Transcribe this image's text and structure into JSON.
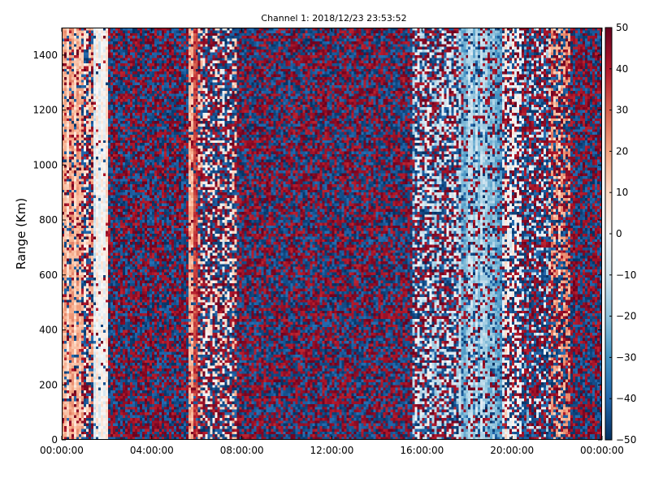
{
  "chart_data": {
    "type": "heatmap",
    "title": "Channel 1: 2018/12/23 23:53:52",
    "xlabel": "",
    "ylabel": "Range (Km)",
    "x_ticks": [
      "00:00:00",
      "04:00:00",
      "08:00:00",
      "12:00:00",
      "16:00:00",
      "20:00:00",
      "00:00:00"
    ],
    "x_range_hours": [
      0,
      24
    ],
    "y_ticks": [
      0,
      200,
      400,
      600,
      800,
      1000,
      1200,
      1400
    ],
    "ylim": [
      0,
      1500
    ],
    "colorbar": {
      "ticks": [
        -50,
        -40,
        -30,
        -20,
        -10,
        0,
        10,
        20,
        30,
        40,
        50
      ],
      "range": [
        -50,
        50
      ],
      "colormap": "RdBu_r",
      "stops": [
        "#053061",
        "#2166ac",
        "#4393c3",
        "#92c5de",
        "#d1e5f0",
        "#f7f7f7",
        "#fddbc7",
        "#f4a582",
        "#d6604d",
        "#b2182b",
        "#67001f"
      ]
    },
    "grid": false,
    "column_regimes": [
      {
        "from_hour": 0.0,
        "to_hour": 0.9,
        "mean": 15,
        "noise": 0.25
      },
      {
        "from_hour": 0.9,
        "to_hour": 1.4,
        "mean": 10,
        "noise": 0.6
      },
      {
        "from_hour": 1.4,
        "to_hour": 2.1,
        "mean": 2,
        "noise": 0.05
      },
      {
        "from_hour": 2.1,
        "to_hour": 5.6,
        "mean": 0,
        "noise": 1.0
      },
      {
        "from_hour": 5.6,
        "to_hour": 6.1,
        "mean": 26,
        "noise": 0.15
      },
      {
        "from_hour": 6.1,
        "to_hour": 7.8,
        "mean": 4,
        "noise": 0.7
      },
      {
        "from_hour": 7.8,
        "to_hour": 15.6,
        "mean": 0,
        "noise": 1.0
      },
      {
        "from_hour": 15.6,
        "to_hour": 17.6,
        "mean": -8,
        "noise": 0.6
      },
      {
        "from_hour": 17.6,
        "to_hour": 19.6,
        "mean": -20,
        "noise": 0.3
      },
      {
        "from_hour": 19.6,
        "to_hour": 20.4,
        "mean": 2,
        "noise": 0.5
      },
      {
        "from_hour": 20.4,
        "to_hour": 21.6,
        "mean": -12,
        "noise": 0.8
      },
      {
        "from_hour": 21.6,
        "to_hour": 22.6,
        "mean": 15,
        "noise": 0.6
      },
      {
        "from_hour": 22.6,
        "to_hour": 24.0,
        "mean": 0,
        "noise": 1.0
      }
    ]
  }
}
